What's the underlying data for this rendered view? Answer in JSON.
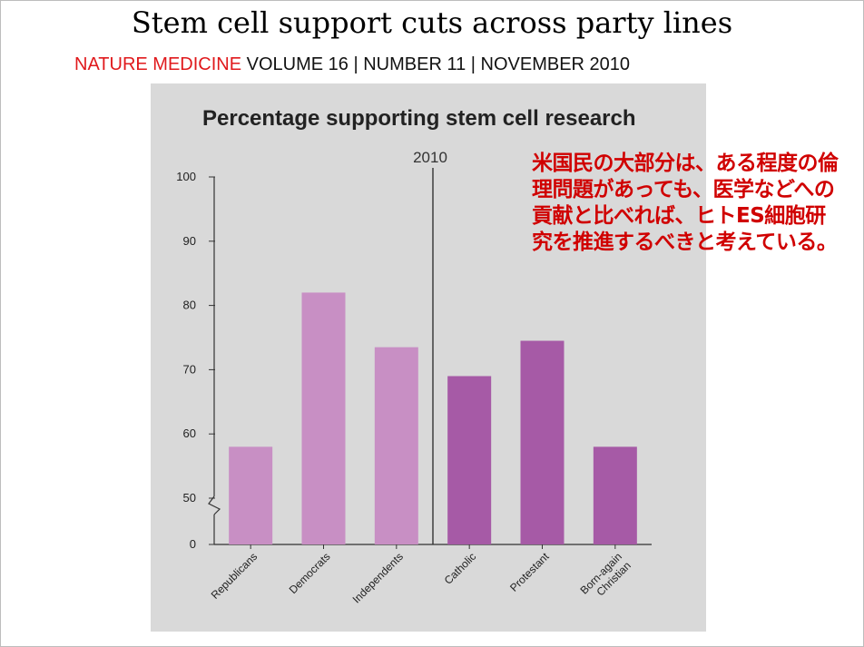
{
  "slide": {
    "title": "Stem cell support cuts across party lines",
    "citation_journal": "NATURE MEDICINE",
    "citation_rest": "VOLUME 16 | NUMBER 11 | NOVEMBER 2010"
  },
  "annotation": {
    "text": "米国民の大部分は、ある程度の倫理問題があっても、医学などへの貢献と比べれば、ヒトES細胞研究を推進するべきと考えている。",
    "color": "#d00000"
  },
  "chart_data": {
    "type": "bar",
    "title": "Percentage supporting stem cell research",
    "year_marker": "2010",
    "categories": [
      "Republicans",
      "Democrats",
      "Independents",
      "Catholic",
      "Protestant",
      "Born-again\nChristian"
    ],
    "values": [
      58,
      82,
      73.5,
      69,
      74.5,
      58
    ],
    "colors": [
      "#c88fc4",
      "#c88fc4",
      "#c88fc4",
      "#a65aa6",
      "#a65aa6",
      "#a65aa6"
    ],
    "yticks": [
      0,
      50,
      60,
      70,
      80,
      90,
      100
    ],
    "ylim": [
      0,
      100
    ],
    "axis_break": [
      0,
      50
    ],
    "xlabel": "",
    "ylabel": "",
    "grid": false
  }
}
